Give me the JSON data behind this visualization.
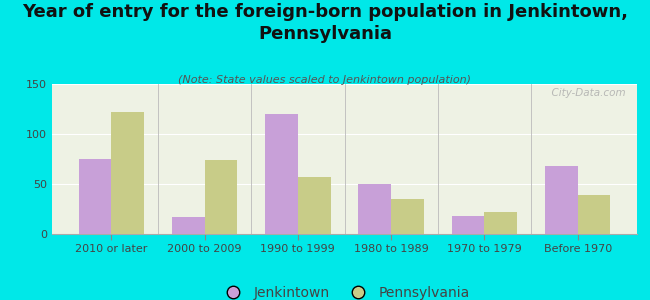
{
  "title": "Year of entry for the foreign-born population in Jenkintown,\nPennsylvania",
  "subtitle": "(Note: State values scaled to Jenkintown population)",
  "categories": [
    "2010 or later",
    "2000 to 2009",
    "1990 to 1999",
    "1980 to 1989",
    "1970 to 1979",
    "Before 1970"
  ],
  "jenkintown_values": [
    75,
    17,
    120,
    50,
    18,
    68
  ],
  "pennsylvania_values": [
    122,
    74,
    57,
    35,
    22,
    39
  ],
  "jenkintown_color": "#c8a0d8",
  "pennsylvania_color": "#c8cc88",
  "background_color": "#00e8e8",
  "plot_bg_color": "#eef2e4",
  "ylim": [
    0,
    150
  ],
  "yticks": [
    0,
    50,
    100,
    150
  ],
  "bar_width": 0.35,
  "title_fontsize": 13,
  "subtitle_fontsize": 8,
  "tick_fontsize": 8,
  "legend_fontsize": 10,
  "watermark": "  City-Data.com"
}
